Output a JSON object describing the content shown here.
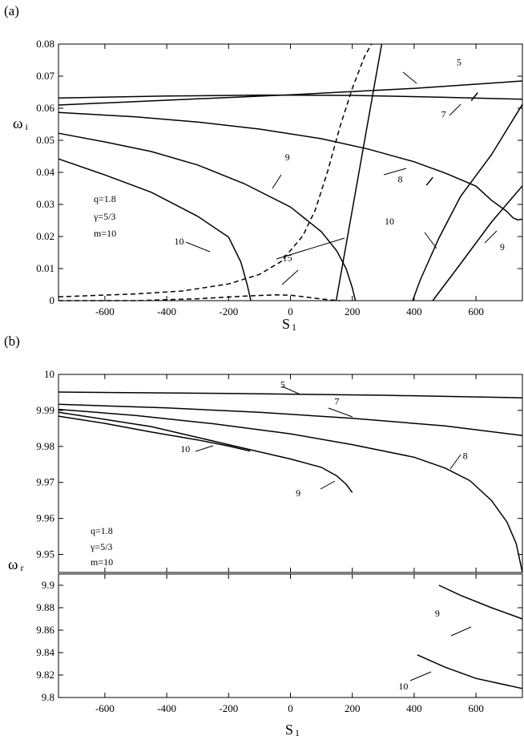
{
  "chart_data": [
    {
      "panel_label": "(a)",
      "type": "line",
      "xlabel": "S",
      "xlabel_sub": "1",
      "ylabel": "ω",
      "ylabel_sub": "i",
      "xlim": [
        -750,
        750
      ],
      "ylim": [
        0,
        0.08
      ],
      "xticks": [
        -600,
        -400,
        -200,
        0,
        200,
        400,
        600
      ],
      "yticks": [
        0,
        0.01,
        0.02,
        0.03,
        0.04,
        0.05,
        0.06,
        0.07,
        0.08
      ],
      "ytick_labels": [
        "0",
        "0.01",
        "0.02",
        "0.03",
        "0.04",
        "0.05",
        "0.06",
        "0.07",
        "0.08"
      ],
      "params": [
        "q=1.8",
        "γ=5/3",
        "m=10"
      ],
      "series": [
        {
          "label": "5",
          "style": "solid",
          "points": [
            [
              -750,
              0.061
            ],
            [
              -400,
              0.0625
            ],
            [
              0,
              0.0642
            ],
            [
              400,
              0.0662
            ],
            [
              750,
              0.0685
            ]
          ]
        },
        {
          "label": "7",
          "style": "solid",
          "points": [
            [
              -750,
              0.0632
            ],
            [
              -400,
              0.0638
            ],
            [
              -100,
              0.0641
            ],
            [
              200,
              0.064
            ],
            [
              500,
              0.0634
            ],
            [
              750,
              0.0628
            ]
          ]
        },
        {
          "label": "8",
          "style": "solid",
          "points": [
            [
              -750,
              0.0587
            ],
            [
              -500,
              0.0573
            ],
            [
              -300,
              0.0557
            ],
            [
              -100,
              0.0535
            ],
            [
              100,
              0.0505
            ],
            [
              250,
              0.0473
            ],
            [
              400,
              0.0433
            ],
            [
              500,
              0.0398
            ],
            [
              600,
              0.0357
            ],
            [
              650,
              0.0313
            ],
            [
              700,
              0.0278
            ],
            [
              720,
              0.0258
            ],
            [
              735,
              0.0252
            ],
            [
              750,
              0.0254
            ]
          ]
        },
        {
          "label": "9",
          "style": "solid",
          "points": [
            [
              -750,
              0.0522
            ],
            [
              -600,
              0.0495
            ],
            [
              -450,
              0.0465
            ],
            [
              -300,
              0.0423
            ],
            [
              -150,
              0.0365
            ],
            [
              0,
              0.0292
            ],
            [
              100,
              0.0215
            ],
            [
              150,
              0.0155
            ],
            [
              180,
              0.01
            ],
            [
              200,
              0.004
            ],
            [
              210,
              0.0
            ]
          ]
        },
        {
          "label": "10",
          "style": "solid",
          "points": [
            [
              -750,
              0.0442
            ],
            [
              -600,
              0.0392
            ],
            [
              -450,
              0.0338
            ],
            [
              -300,
              0.0263
            ],
            [
              -200,
              0.0198
            ],
            [
              -160,
              0.012
            ],
            [
              -140,
              0.005
            ],
            [
              -128,
              0.0
            ]
          ]
        },
        {
          "label": "15",
          "style": "dashed",
          "points": [
            [
              -750,
              0.0012
            ],
            [
              -500,
              0.0021
            ],
            [
              -350,
              0.003
            ],
            [
              -200,
              0.0052
            ],
            [
              -100,
              0.0082
            ],
            [
              -30,
              0.0122
            ],
            [
              40,
              0.0202
            ],
            [
              80,
              0.0282
            ],
            [
              120,
              0.0402
            ],
            [
              160,
              0.0542
            ],
            [
              200,
              0.0662
            ],
            [
              240,
              0.0762
            ],
            [
              262,
              0.08
            ]
          ]
        },
        {
          "label": "15",
          "style": "dashed",
          "points": [
            [
              -750,
              0.0
            ],
            [
              -500,
              0.0
            ],
            [
              -300,
              0.0006
            ],
            [
              -150,
              0.0014
            ],
            [
              -50,
              0.0018
            ],
            [
              0,
              0.0017
            ],
            [
              60,
              0.001
            ],
            [
              120,
              0.0003
            ],
            [
              160,
              0.0
            ]
          ]
        },
        {
          "label": "",
          "style": "solid",
          "points": [
            [
              148,
              0.0
            ],
            [
              295,
              0.08
            ]
          ]
        },
        {
          "label": "10",
          "style": "solid",
          "points": [
            [
              395,
              0.0
            ],
            [
              420,
              0.0065
            ],
            [
              480,
              0.0195
            ],
            [
              550,
              0.0325
            ],
            [
              650,
              0.0455
            ],
            [
              750,
              0.0612
            ]
          ]
        },
        {
          "label": "9",
          "style": "solid",
          "points": [
            [
              460,
              0.0
            ],
            [
              550,
              0.0115
            ],
            [
              650,
              0.0245
            ],
            [
              750,
              0.0358
            ]
          ]
        }
      ],
      "tick_marks": [
        [
          450,
          0.0372
        ],
        [
          595,
          0.0636
        ]
      ],
      "curve_labels": [
        {
          "text": "5",
          "x": 545,
          "y": 0.0734
        },
        {
          "text": "7",
          "x": 495,
          "y": 0.0571
        },
        {
          "text": "8",
          "x": 355,
          "y": 0.0369
        },
        {
          "text": "9",
          "x": -10,
          "y": 0.0438
        },
        {
          "text": "10",
          "x": -360,
          "y": 0.0175
        },
        {
          "text": "15",
          "x": -10,
          "y": 0.0124
        },
        {
          "text": "10",
          "x": 320,
          "y": 0.0237
        },
        {
          "text": "9",
          "x": 685,
          "y": 0.0157
        }
      ]
    },
    {
      "panel_label": "(b)",
      "type": "line",
      "xlabel": "S",
      "xlabel_sub": "1",
      "ylabel": "ω",
      "ylabel_sub": "r",
      "xlim": [
        -750,
        750
      ],
      "xticks": [
        -600,
        -400,
        -200,
        0,
        200,
        400,
        600
      ],
      "params": [
        "q=1.8",
        "γ=5/3",
        "m=10"
      ],
      "upper": {
        "ylim": [
          9.945,
          10.0
        ],
        "yticks": [
          9.95,
          9.96,
          9.97,
          9.98,
          9.99,
          10.0
        ],
        "ytick_labels": [
          "9.95",
          "9.96",
          "9.97",
          "9.98",
          "9.99",
          "10"
        ],
        "series": [
          {
            "label": "5",
            "points": [
              [
                -750,
                9.9951
              ],
              [
                -200,
                9.9947
              ],
              [
                300,
                9.9942
              ],
              [
                750,
                9.9935
              ]
            ]
          },
          {
            "label": "7",
            "points": [
              [
                -750,
                9.9917
              ],
              [
                -400,
                9.9907
              ],
              [
                -100,
                9.9895
              ],
              [
                200,
                9.9878
              ],
              [
                500,
                9.9857
              ],
              [
                750,
                9.983
              ]
            ]
          },
          {
            "label": "8",
            "points": [
              [
                -750,
                9.9903
              ],
              [
                -500,
                9.9886
              ],
              [
                -250,
                9.9863
              ],
              [
                0,
                9.9835
              ],
              [
                200,
                9.9805
              ],
              [
                400,
                9.977
              ],
              [
                500,
                9.974
              ],
              [
                580,
                9.9705
              ],
              [
                650,
                9.965
              ],
              [
                700,
                9.959
              ],
              [
                730,
                9.953
              ],
              [
                750,
                9.945
              ]
            ]
          },
          {
            "label": "9",
            "points": [
              [
                -750,
                9.9895
              ],
              [
                -600,
                9.9875
              ],
              [
                -450,
                9.9855
              ],
              [
                -300,
                9.9825
              ],
              [
                -150,
                9.9795
              ],
              [
                0,
                9.9765
              ],
              [
                100,
                9.9742
              ],
              [
                150,
                9.9718
              ],
              [
                180,
                9.9695
              ],
              [
                200,
                9.9672
              ]
            ]
          },
          {
            "label": "10",
            "points": [
              [
                -750,
                9.9884
              ],
              [
                -600,
                9.9864
              ],
              [
                -450,
                9.984
              ],
              [
                -300,
                9.9818
              ],
              [
                -200,
                9.9801
              ],
              [
                -130,
                9.9787
              ]
            ]
          }
        ],
        "curve_labels": [
          {
            "text": "5",
            "x": -25,
            "y": 9.9963
          },
          {
            "text": "7",
            "x": 150,
            "y": 9.9917
          },
          {
            "text": "8",
            "x": 565,
            "y": 9.9765
          },
          {
            "text": "9",
            "x": 25,
            "y": 9.9662
          },
          {
            "text": "10",
            "x": -340,
            "y": 9.9784
          }
        ]
      },
      "lower": {
        "ylim": [
          9.8,
          9.91
        ],
        "yticks": [
          9.8,
          9.82,
          9.84,
          9.86,
          9.88,
          9.9
        ],
        "ytick_labels": [
          "9.8",
          "9.82",
          "9.84",
          "9.86",
          "9.88",
          "9.9"
        ],
        "series": [
          {
            "label": "9",
            "points": [
              [
                480,
                9.9
              ],
              [
                550,
                9.891
              ],
              [
                650,
                9.88
              ],
              [
                750,
                9.87
              ]
            ]
          },
          {
            "label": "10",
            "points": [
              [
                410,
                9.838
              ],
              [
                500,
                9.827
              ],
              [
                600,
                9.817
              ],
              [
                750,
                9.808
              ]
            ]
          }
        ],
        "curve_labels": [
          {
            "text": "9",
            "x": 475,
            "y": 9.872
          },
          {
            "text": "10",
            "x": 365,
            "y": 9.807
          }
        ]
      }
    }
  ]
}
